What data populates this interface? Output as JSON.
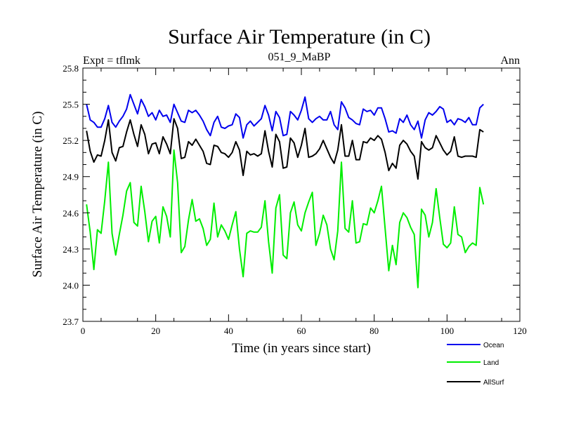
{
  "chart_data": {
    "type": "line",
    "title": "Surface Air Temperature (in C)",
    "subtitle": "051_9_MaBP",
    "left_note": "Expt = tflmk",
    "right_note": "Ann",
    "xlabel": "Time (in years since start)",
    "ylabel": "Surface Air Temperature (in C)",
    "xlim": [
      0,
      120
    ],
    "ylim": [
      23.7,
      25.8
    ],
    "xticks": [
      0,
      20,
      40,
      60,
      80,
      100,
      120
    ],
    "yticks": [
      23.7,
      24.0,
      24.3,
      24.6,
      24.9,
      25.2,
      25.5,
      25.8
    ],
    "ytick_labels": [
      "23.7",
      "24.0",
      "24.3",
      "24.6",
      "24.9",
      "25.2",
      "25.5",
      "25.8"
    ],
    "grid": false,
    "legend_position": "bottom-right, below plot",
    "x": [
      1,
      2,
      3,
      4,
      5,
      6,
      7,
      8,
      9,
      10,
      11,
      12,
      13,
      14,
      15,
      16,
      17,
      18,
      19,
      20,
      21,
      22,
      23,
      24,
      25,
      26,
      27,
      28,
      29,
      30,
      31,
      32,
      33,
      34,
      35,
      36,
      37,
      38,
      39,
      40,
      41,
      42,
      43,
      44,
      45,
      46,
      47,
      48,
      49,
      50,
      51,
      52,
      53,
      54,
      55,
      56,
      57,
      58,
      59,
      60,
      61,
      62,
      63,
      64,
      65,
      66,
      67,
      68,
      69,
      70,
      71,
      72,
      73,
      74,
      75,
      76,
      77,
      78,
      79,
      80,
      81,
      82,
      83,
      84,
      85,
      86,
      87,
      88,
      89,
      90,
      91,
      92,
      93,
      94,
      95,
      96,
      97,
      98,
      99,
      100,
      101,
      102,
      103,
      104,
      105,
      106,
      107,
      108,
      109,
      110
    ],
    "series": [
      {
        "name": "Ocean",
        "color": "#0000ee",
        "values": [
          25.5,
          25.37,
          25.35,
          25.31,
          25.31,
          25.38,
          25.49,
          25.35,
          25.31,
          25.36,
          25.4,
          25.46,
          25.58,
          25.5,
          25.42,
          25.54,
          25.48,
          25.4,
          25.43,
          25.37,
          25.45,
          25.4,
          25.41,
          25.35,
          25.5,
          25.43,
          25.36,
          25.35,
          25.45,
          25.43,
          25.45,
          25.41,
          25.36,
          25.29,
          25.24,
          25.35,
          25.4,
          25.31,
          25.3,
          25.32,
          25.33,
          25.42,
          25.39,
          25.22,
          25.33,
          25.36,
          25.32,
          25.35,
          25.38,
          25.49,
          25.41,
          25.28,
          25.44,
          25.39,
          25.24,
          25.25,
          25.44,
          25.41,
          25.37,
          25.45,
          25.56,
          25.38,
          25.35,
          25.38,
          25.4,
          25.37,
          25.37,
          25.44,
          25.33,
          25.29,
          25.52,
          25.47,
          25.39,
          25.37,
          25.34,
          25.33,
          25.46,
          25.44,
          25.45,
          25.41,
          25.47,
          25.47,
          25.38,
          25.27,
          25.28,
          25.26,
          25.38,
          25.35,
          25.41,
          25.33,
          25.29,
          25.36,
          25.22,
          25.37,
          25.43,
          25.41,
          25.44,
          25.48,
          25.46,
          25.35,
          25.37,
          25.33,
          25.38,
          25.37,
          25.35,
          25.39,
          25.33,
          25.33,
          25.47,
          25.5
        ]
      },
      {
        "name": "Land",
        "color": "#00ee00",
        "values": [
          24.67,
          24.44,
          24.13,
          24.46,
          24.43,
          24.7,
          25.02,
          24.43,
          24.25,
          24.42,
          24.58,
          24.78,
          24.85,
          24.52,
          24.49,
          24.82,
          24.61,
          24.36,
          24.53,
          24.57,
          24.35,
          24.65,
          24.57,
          24.4,
          25.12,
          24.85,
          24.27,
          24.32,
          24.54,
          24.71,
          24.53,
          24.55,
          24.47,
          24.33,
          24.38,
          24.68,
          24.4,
          24.5,
          24.45,
          24.38,
          24.5,
          24.61,
          24.3,
          24.07,
          24.43,
          24.45,
          24.44,
          24.44,
          24.48,
          24.7,
          24.36,
          24.1,
          24.64,
          24.75,
          24.25,
          24.22,
          24.6,
          24.69,
          24.5,
          24.45,
          24.6,
          24.69,
          24.77,
          24.33,
          24.43,
          24.58,
          24.5,
          24.3,
          24.21,
          24.45,
          25.02,
          24.47,
          24.44,
          24.7,
          24.35,
          24.36,
          24.51,
          24.5,
          24.64,
          24.6,
          24.7,
          24.82,
          24.47,
          24.12,
          24.33,
          24.17,
          24.52,
          24.6,
          24.56,
          24.48,
          24.42,
          23.98,
          24.63,
          24.58,
          24.4,
          24.52,
          24.8,
          24.56,
          24.34,
          24.31,
          24.35,
          24.65,
          24.42,
          24.4,
          24.27,
          24.32,
          24.35,
          24.33,
          24.81,
          24.67
        ]
      },
      {
        "name": "AllSurf",
        "color": "#000000",
        "values": [
          25.28,
          25.11,
          25.02,
          25.08,
          25.07,
          25.2,
          25.37,
          25.1,
          25.03,
          25.14,
          25.15,
          25.27,
          25.37,
          25.25,
          25.15,
          25.33,
          25.25,
          25.09,
          25.17,
          25.18,
          25.09,
          25.23,
          25.17,
          25.09,
          25.38,
          25.3,
          25.05,
          25.06,
          25.19,
          25.16,
          25.21,
          25.16,
          25.11,
          25.01,
          25.0,
          25.16,
          25.15,
          25.1,
          25.09,
          25.06,
          25.1,
          25.19,
          25.12,
          24.91,
          25.11,
          25.08,
          25.09,
          25.07,
          25.09,
          25.28,
          25.11,
          24.98,
          25.25,
          25.19,
          24.97,
          24.98,
          25.22,
          25.18,
          25.06,
          25.16,
          25.3,
          25.06,
          25.07,
          25.09,
          25.13,
          25.2,
          25.13,
          25.06,
          25.01,
          25.12,
          25.33,
          25.07,
          25.07,
          25.2,
          25.04,
          25.04,
          25.19,
          25.18,
          25.22,
          25.2,
          25.24,
          25.21,
          25.1,
          24.95,
          25.01,
          24.97,
          25.16,
          25.2,
          25.17,
          25.11,
          25.07,
          24.88,
          25.19,
          25.14,
          25.12,
          25.14,
          25.24,
          25.18,
          25.12,
          25.08,
          25.11,
          25.23,
          25.07,
          25.06,
          25.07,
          25.07,
          25.07,
          25.06,
          25.29,
          25.27
        ]
      }
    ]
  }
}
